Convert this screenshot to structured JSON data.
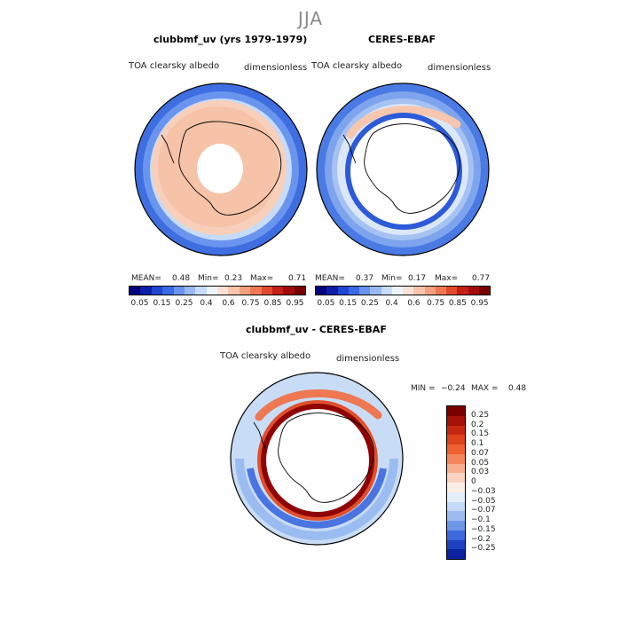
{
  "season": "JJA",
  "panel1": {
    "title": "clubbmf_uv (yrs 1979-1979)",
    "variable": "TOA clearsky albedo",
    "units": "dimensionless",
    "mean_label": "MEAN=",
    "mean": "0.48",
    "min_label": "Min=",
    "min": "0.23",
    "max_label": "Max=",
    "max": "0.71"
  },
  "panel2": {
    "title": "CERES-EBAF",
    "variable": "TOA clearsky albedo",
    "units": "dimensionless",
    "mean_label": "MEAN=",
    "mean": "0.37",
    "min_label": "Min=",
    "min": "0.17",
    "max_label": "Max=",
    "max": "0.77"
  },
  "diff": {
    "title": "clubbmf_uv - CERES-EBAF",
    "variable": "TOA clearsky albedo",
    "units": "dimensionless",
    "min_label": "MIN =",
    "min": "−0.24",
    "max_label": "MAX =",
    "max": "0.48"
  },
  "colorbar_abs": {
    "ticks": [
      "0.05",
      "0.15",
      "0.25",
      "0.4",
      "0.6",
      "0.75",
      "0.85",
      "0.95"
    ],
    "colors": [
      "#00007c",
      "#0a1ea8",
      "#1e46d2",
      "#3a69e6",
      "#6a92ee",
      "#9ab9f2",
      "#c6dcf8",
      "#eef4fc",
      "#fce2d6",
      "#f9c4ac",
      "#f5a07e",
      "#ee7852",
      "#e04a2c",
      "#c42014",
      "#a30b0b",
      "#780000"
    ]
  },
  "colorbar_diff": {
    "labels": [
      "0.25",
      "0.2",
      "0.15",
      "0.1",
      "0.07",
      "0.05",
      "0.03",
      "0",
      "−0.03",
      "−0.05",
      "−0.07",
      "−0.1",
      "−0.15",
      "−0.2",
      "−0.25"
    ],
    "colors": [
      "#7a0000",
      "#a51008",
      "#c82812",
      "#e0421e",
      "#f06030",
      "#f5875e",
      "#f8ae8e",
      "#fbd3c0",
      "#fbeee6",
      "#e4eefb",
      "#c4d8f6",
      "#9dbcf0",
      "#7096e8",
      "#3e68dc",
      "#1c40c0",
      "#0c22a0"
    ]
  },
  "chart_data": {
    "type": "heatmap",
    "projection": "south polar stereographic",
    "panels": [
      {
        "title": "clubbmf_uv (yrs 1979-1979)",
        "mean": 0.48,
        "min": 0.23,
        "max": 0.71
      },
      {
        "title": "CERES-EBAF",
        "mean": 0.37,
        "min": 0.17,
        "max": 0.77
      },
      {
        "title": "clubbmf_uv - CERES-EBAF",
        "min": -0.24,
        "max": 0.48
      }
    ]
  }
}
